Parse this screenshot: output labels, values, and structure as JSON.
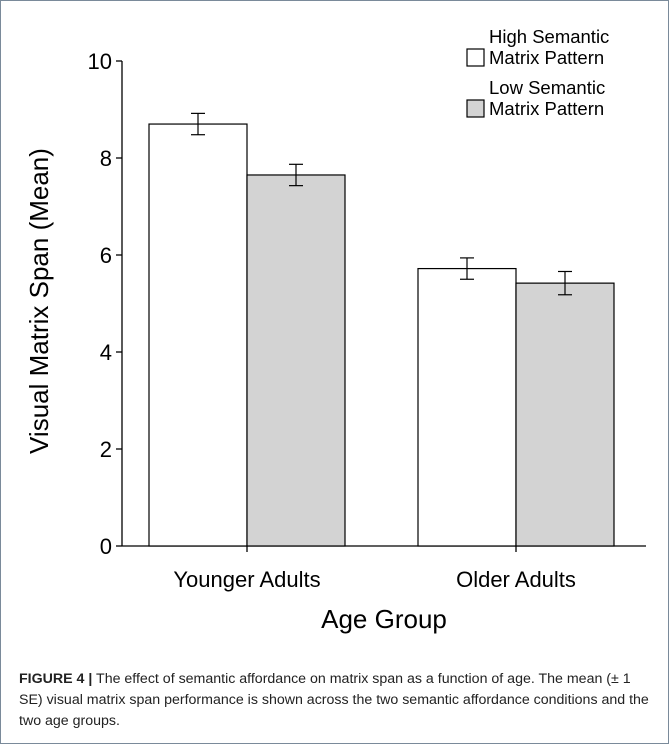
{
  "chart_data": {
    "type": "bar",
    "categories": [
      "Younger Adults",
      "Older Adults"
    ],
    "series": [
      {
        "name": "High Semantic\nMatrix Pattern",
        "values": [
          8.7,
          5.72
        ],
        "errors": [
          0.22,
          0.22
        ],
        "color": "#ffffff"
      },
      {
        "name": "Low Semantic\nMatrix Pattern",
        "values": [
          7.65,
          5.42
        ],
        "errors": [
          0.22,
          0.24
        ],
        "color": "#d3d3d3"
      }
    ],
    "xlabel": "Age Group",
    "ylabel": "Visual Matrix Span (Mean)",
    "ylim": [
      0,
      10
    ],
    "yticks": [
      "0",
      "2",
      "4",
      "6",
      "8",
      "10"
    ],
    "grid": false,
    "legend": "top-right",
    "error_bars": "± 1 SE"
  },
  "caption": {
    "label": "FIGURE 4 |",
    "text": " The effect of semantic affordance on matrix span as a function of age. The mean (± 1 SE) visual matrix span performance is shown across the two semantic affordance conditions and the two age groups."
  }
}
